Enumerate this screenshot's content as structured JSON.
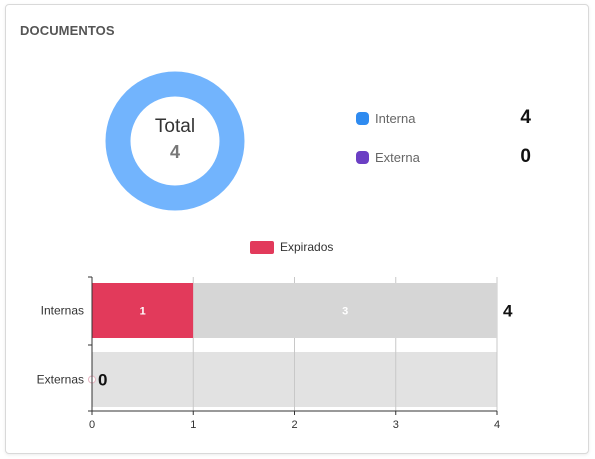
{
  "card": {
    "title": "DOCUMENTOS"
  },
  "donut": {
    "total_label": "Total",
    "total_value": "4",
    "ring_color": "#72B4FD",
    "segments": [
      {
        "name": "Interna",
        "value": 4,
        "color": "#72B4FD"
      },
      {
        "name": "Externa",
        "value": 0,
        "color": "#6B3FC4"
      }
    ]
  },
  "legend": [
    {
      "label": "Interna",
      "value": "4",
      "color": "#2F8BF0"
    },
    {
      "label": "Externa",
      "value": "0",
      "color": "#6B3FC4"
    }
  ],
  "chart_data": {
    "type": "bar",
    "orientation": "horizontal",
    "stacked": true,
    "categories": [
      "Internas",
      "Externas"
    ],
    "series": [
      {
        "name": "Expirados",
        "values": [
          1,
          0
        ],
        "color": "#E23A5B",
        "label_color": "#ffffff"
      },
      {
        "values": [
          3,
          0
        ],
        "color": "#D6D6D6",
        "label_color": "#ffffff"
      }
    ],
    "totals": [
      "4",
      "0"
    ],
    "xlim": [
      0,
      4
    ],
    "x_ticks": [
      "0",
      "1",
      "2",
      "3",
      "4"
    ],
    "grid": true,
    "legend_position": "top-center",
    "row_background": "#E2E2E2"
  }
}
